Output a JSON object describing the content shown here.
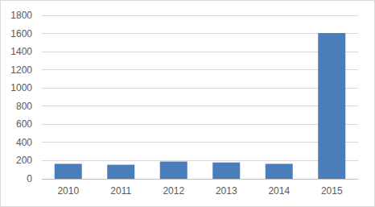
{
  "chart_data": {
    "type": "bar",
    "categories": [
      "2010",
      "2011",
      "2012",
      "2013",
      "2014",
      "2015"
    ],
    "values": [
      165,
      155,
      190,
      180,
      165,
      1605
    ],
    "color": "#4a7ebb",
    "ylim": [
      0,
      1800
    ],
    "yticks": [
      0,
      200,
      400,
      600,
      800,
      1000,
      1200,
      1400,
      1600,
      1800
    ],
    "grid": true
  }
}
